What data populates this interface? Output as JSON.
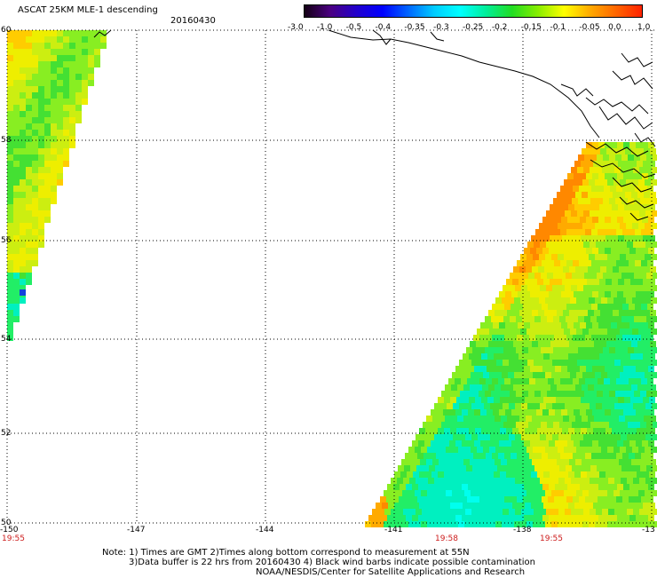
{
  "header": {
    "title": "ASCAT 25KM MLE-1 descending",
    "date": "20160430"
  },
  "colorbar": {
    "labels": [
      "-3.0",
      "-1.0",
      "-0.5",
      "-0.4",
      "-0.35",
      "-0.3",
      "-0.25",
      "-0.2",
      "-0.15",
      "-0.1",
      "-0.05",
      "0.0",
      "1.0"
    ],
    "colors": [
      "#140014",
      "#4b0082",
      "#2200cc",
      "#0000ff",
      "#0066ff",
      "#00ccff",
      "#00ffff",
      "#00ee99",
      "#22dd22",
      "#88ee00",
      "#ffff00",
      "#ffaa00",
      "#ff6600",
      "#ff2200"
    ]
  },
  "map": {
    "lon_labels": [
      "-150",
      "-147",
      "-144",
      "-141",
      "-138",
      "-13"
    ],
    "lat_labels": [
      "60",
      "58",
      "56",
      "54",
      "52",
      "50"
    ],
    "time_labels": [
      "19:55",
      "19:58",
      "19:55"
    ]
  },
  "footer": {
    "line1": "Note: 1) Times are GMT 2)Times along bottom correspond to measurement at 55N",
    "line2": "3)Data buffer is 22 hrs from 20160430 4) Black wind barbs indicate possible contamination",
    "line3": "NOAA/NESDIS/Center for Satellite Applications and Research"
  }
}
